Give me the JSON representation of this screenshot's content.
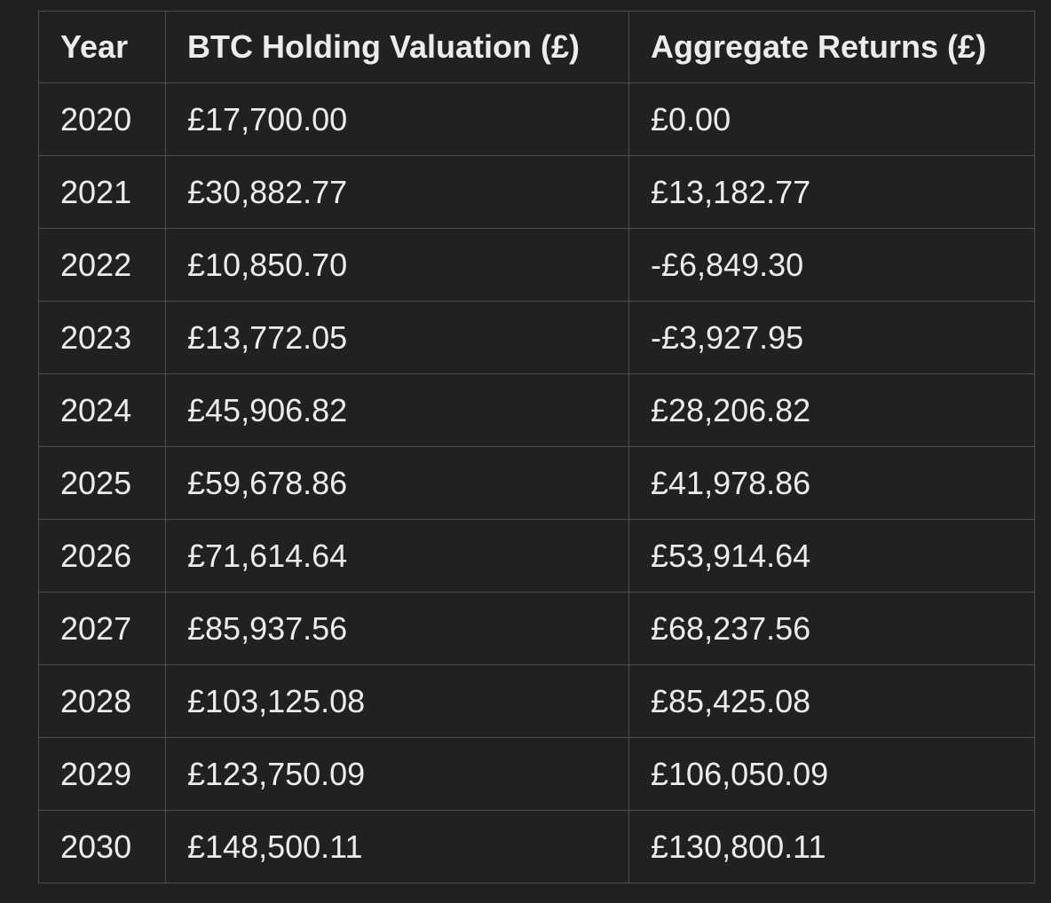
{
  "table": {
    "headers": [
      "Year",
      "BTC Holding Valuation (£)",
      "Aggregate Returns (£)"
    ],
    "rows": [
      [
        "2020",
        "£17,700.00",
        "£0.00"
      ],
      [
        "2021",
        "£30,882.77",
        "£13,182.77"
      ],
      [
        "2022",
        "£10,850.70",
        "-£6,849.30"
      ],
      [
        "2023",
        "£13,772.05",
        "-£3,927.95"
      ],
      [
        "2024",
        "£45,906.82",
        "£28,206.82"
      ],
      [
        "2025",
        "£59,678.86",
        "£41,978.86"
      ],
      [
        "2026",
        "£71,614.64",
        "£53,914.64"
      ],
      [
        "2027",
        "£85,937.56",
        "£68,237.56"
      ],
      [
        "2028",
        "£103,125.08",
        "£85,425.08"
      ],
      [
        "2029",
        "£123,750.09",
        "£106,050.09"
      ],
      [
        "2030",
        "£148,500.11",
        "£130,800.11"
      ]
    ]
  }
}
